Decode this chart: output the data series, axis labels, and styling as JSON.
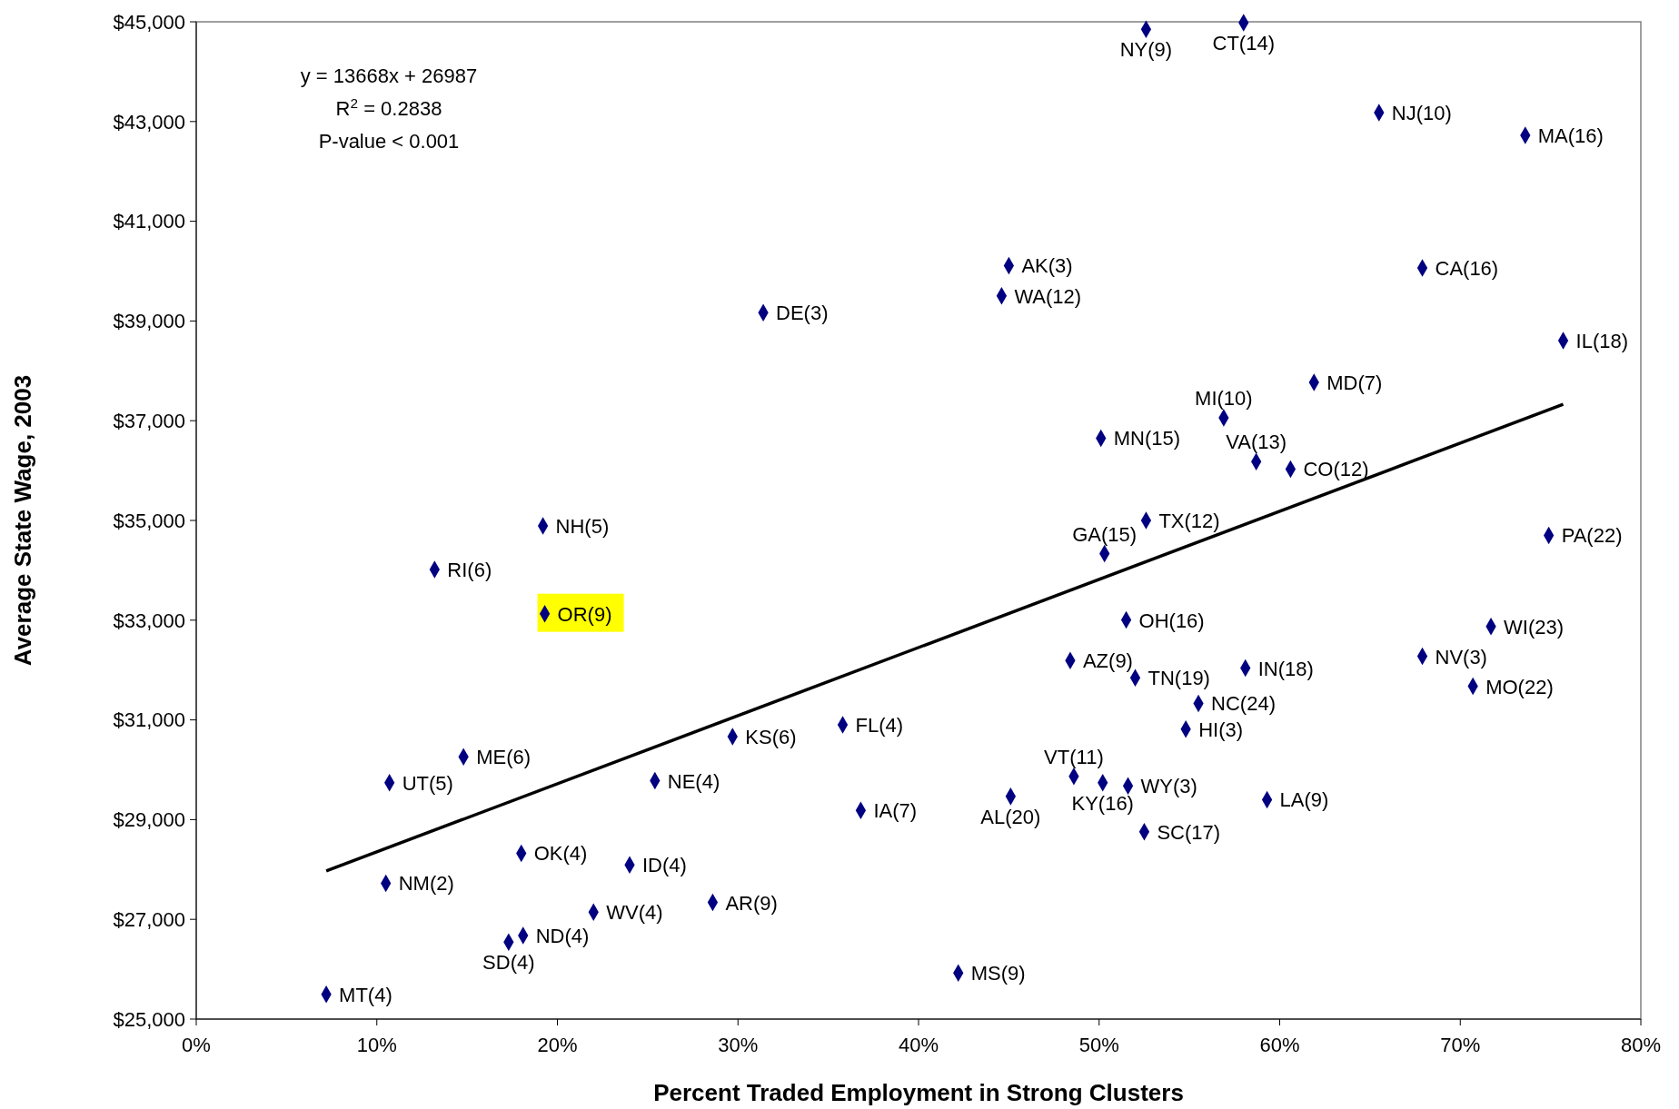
{
  "chart_data": {
    "type": "scatter",
    "xlabel": "Percent Traded Employment in Strong Clusters",
    "ylabel": "Average State Wage, 2003",
    "xlim": [
      0,
      0.8
    ],
    "xticks": [
      {
        "value": 0,
        "label": "0%"
      },
      {
        "value": 0.1,
        "label": "10%"
      },
      {
        "value": 0.2,
        "label": "20%"
      },
      {
        "value": 0.3,
        "label": "30%"
      },
      {
        "value": 0.4,
        "label": "40%"
      },
      {
        "value": 0.5,
        "label": "50%"
      },
      {
        "value": 0.6,
        "label": "60%"
      },
      {
        "value": 0.7,
        "label": "70%"
      },
      {
        "value": 0.8,
        "label": "80%"
      }
    ],
    "ylim": [
      25000,
      45000
    ],
    "yticks": [
      {
        "value": 25000,
        "label": "$25,000"
      },
      {
        "value": 27000,
        "label": "$27,000"
      },
      {
        "value": 29000,
        "label": "$29,000"
      },
      {
        "value": 31000,
        "label": "$31,000"
      },
      {
        "value": 33000,
        "label": "$33,000"
      },
      {
        "value": 35000,
        "label": "$35,000"
      },
      {
        "value": 37000,
        "label": "$37,000"
      },
      {
        "value": 39000,
        "label": "$39,000"
      },
      {
        "value": 41000,
        "label": "$41,000"
      },
      {
        "value": 43000,
        "label": "$43,000"
      },
      {
        "value": 45000,
        "label": "$45,000"
      }
    ],
    "series": [
      {
        "marker": "diamond",
        "color": "#000080",
        "x": [
          0.526,
          0.58,
          0.655,
          0.736,
          0.679,
          0.757,
          0.45,
          0.446,
          0.314,
          0.619,
          0.569,
          0.501,
          0.587,
          0.606,
          0.526,
          0.503,
          0.749,
          0.192,
          0.132,
          0.193,
          0.515,
          0.717,
          0.679,
          0.484,
          0.581,
          0.52,
          0.707,
          0.555,
          0.358,
          0.548,
          0.297,
          0.148,
          0.486,
          0.107,
          0.502,
          0.516,
          0.254,
          0.451,
          0.593,
          0.368,
          0.525,
          0.18,
          0.24,
          0.105,
          0.286,
          0.22,
          0.181,
          0.173,
          0.422,
          0.072
        ],
        "values": [
          44850,
          44980,
          43180,
          42725,
          40065,
          38605,
          40110,
          39505,
          39165,
          37770,
          37060,
          36650,
          36180,
          36030,
          35000,
          34335,
          34700,
          34890,
          34015,
          33130,
          33005,
          32875,
          32275,
          32190,
          32040,
          31845,
          31675,
          31330,
          30900,
          30815,
          30665,
          30260,
          29870,
          29740,
          29740,
          29675,
          29780,
          29465,
          29400,
          29185,
          28755,
          28325,
          28090,
          27725,
          27340,
          27145,
          26675,
          26545,
          25925,
          25495
        ]
      },
      {
        "type": "line",
        "color": "#000000",
        "x": [
          0.072,
          0.757
        ],
        "values": [
          27970,
          37330
        ]
      }
    ],
    "annotations": [
      {
        "text": "NY(9)",
        "x": 0.526,
        "y": 44850
      },
      {
        "text": "CT(14)",
        "x": 0.58,
        "y": 44980
      },
      {
        "text": "NJ(10)",
        "x": 0.655,
        "y": 43180
      },
      {
        "text": "MA(16)",
        "x": 0.736,
        "y": 42725
      },
      {
        "text": "CA(16)",
        "x": 0.679,
        "y": 40065
      },
      {
        "text": "IL(18)",
        "x": 0.757,
        "y": 38605
      },
      {
        "text": "AK(3)",
        "x": 0.45,
        "y": 40110
      },
      {
        "text": "WA(12)",
        "x": 0.446,
        "y": 39505
      },
      {
        "text": "DE(3)",
        "x": 0.314,
        "y": 39165
      },
      {
        "text": "MD(7)",
        "x": 0.619,
        "y": 37770
      },
      {
        "text": "MI(10)",
        "x": 0.569,
        "y": 37060
      },
      {
        "text": "MN(15)",
        "x": 0.501,
        "y": 36650
      },
      {
        "text": "VA(13)",
        "x": 0.587,
        "y": 36180
      },
      {
        "text": "CO(12)",
        "x": 0.606,
        "y": 36030
      },
      {
        "text": "TX(12)",
        "x": 0.526,
        "y": 35000
      },
      {
        "text": "GA(15)",
        "x": 0.503,
        "y": 34335
      },
      {
        "text": "PA(22)",
        "x": 0.749,
        "y": 34700
      },
      {
        "text": "NH(5)",
        "x": 0.192,
        "y": 34890
      },
      {
        "text": "RI(6)",
        "x": 0.132,
        "y": 34015
      },
      {
        "text": "OR(9)",
        "x": 0.193,
        "y": 33130
      },
      {
        "text": "OH(16)",
        "x": 0.515,
        "y": 33005
      },
      {
        "text": "WI(23)",
        "x": 0.717,
        "y": 32875
      },
      {
        "text": "NV(3)",
        "x": 0.679,
        "y": 32275
      },
      {
        "text": "AZ(9)",
        "x": 0.484,
        "y": 32190
      },
      {
        "text": "IN(18)",
        "x": 0.581,
        "y": 32040
      },
      {
        "text": "TN(19)",
        "x": 0.52,
        "y": 31845
      },
      {
        "text": "MO(22)",
        "x": 0.707,
        "y": 31675
      },
      {
        "text": "NC(24)",
        "x": 0.555,
        "y": 31330
      },
      {
        "text": "FL(4)",
        "x": 0.358,
        "y": 30900
      },
      {
        "text": "HI(3)",
        "x": 0.548,
        "y": 30815
      },
      {
        "text": "KS(6)",
        "x": 0.297,
        "y": 30665
      },
      {
        "text": "ME(6)",
        "x": 0.148,
        "y": 30260
      },
      {
        "text": "VT(11)",
        "x": 0.486,
        "y": 29870
      },
      {
        "text": "UT(5)",
        "x": 0.107,
        "y": 29740
      },
      {
        "text": "KY(16)",
        "x": 0.502,
        "y": 29740
      },
      {
        "text": "WY(3)",
        "x": 0.516,
        "y": 29675
      },
      {
        "text": "NE(4)",
        "x": 0.254,
        "y": 29780
      },
      {
        "text": "AL(20)",
        "x": 0.451,
        "y": 29465
      },
      {
        "text": "LA(9)",
        "x": 0.593,
        "y": 29400
      },
      {
        "text": "IA(7)",
        "x": 0.368,
        "y": 29185
      },
      {
        "text": "SC(17)",
        "x": 0.525,
        "y": 28755
      },
      {
        "text": "OK(4)",
        "x": 0.18,
        "y": 28325
      },
      {
        "text": "ID(4)",
        "x": 0.24,
        "y": 28090
      },
      {
        "text": "NM(2)",
        "x": 0.105,
        "y": 27725
      },
      {
        "text": "AR(9)",
        "x": 0.286,
        "y": 27340
      },
      {
        "text": "WV(4)",
        "x": 0.22,
        "y": 27145
      },
      {
        "text": "ND(4)",
        "x": 0.181,
        "y": 26675
      },
      {
        "text": "SD(4)",
        "x": 0.173,
        "y": 26545
      },
      {
        "text": "MS(9)",
        "x": 0.422,
        "y": 25925
      },
      {
        "text": "MT(4)",
        "x": 0.072,
        "y": 25495
      },
      "y = 13668x + 26987",
      "R$^{2}$ = 0.2838",
      "P-value < 0.001"
    ]
  }
}
